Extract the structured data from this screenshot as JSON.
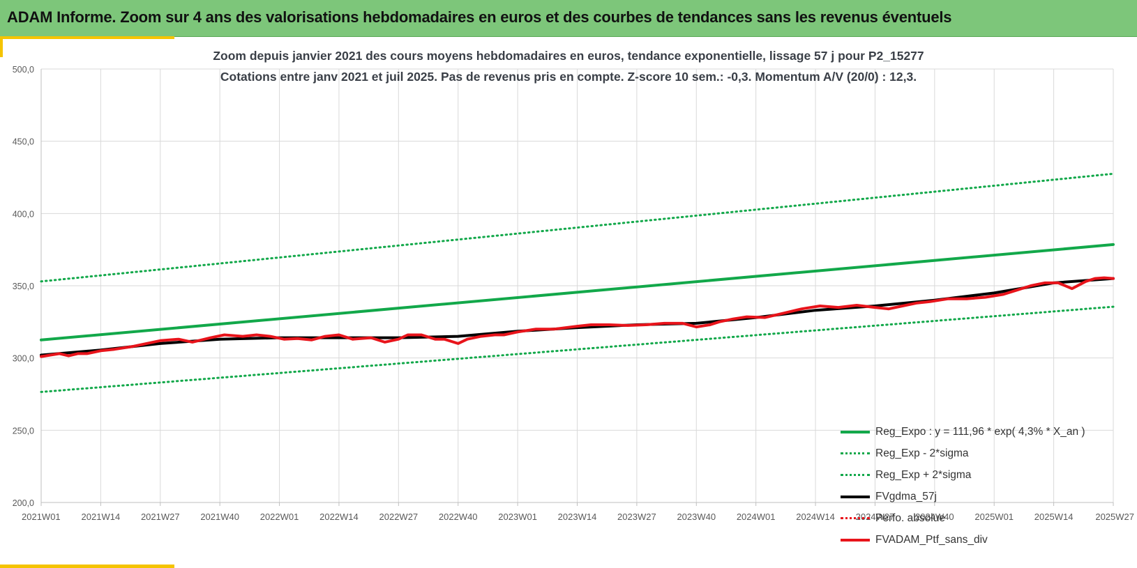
{
  "header": {
    "title": "ADAM Informe. Zoom sur 4 ans des valorisations hebdomadaires en euros et des courbes de tendances sans les revenus éventuels"
  },
  "colors": {
    "banner": "#7dc67a",
    "accent": "#f5c400",
    "trend": "#12a84a",
    "smooth": "#000000",
    "portfolio": "#e8141b"
  },
  "chart_data": {
    "type": "line",
    "title": "Zoom depuis janvier 2021 des cours moyens hebdomadaires  en euros, tendance exponentielle, lissage 57 j pour P2_15277",
    "subtitle": "Cotations entre janv 2021 et juil 2025. Pas de revenus pris en compte. Z-score 10 sem.: -0,3. Momentum A/V (20/0) : 12,3.",
    "x_ticks": [
      "2021W01",
      "2021W14",
      "2021W27",
      "2021W40",
      "2022W01",
      "2022W14",
      "2022W27",
      "2022W40",
      "2023W01",
      "2023W14",
      "2023W27",
      "2023W40",
      "2024W01",
      "2024W14",
      "2024W27",
      "2024W40",
      "2025W01",
      "2025W14",
      "2025W27"
    ],
    "y_ticks": [
      "200,0",
      "250,0",
      "300,0",
      "350,0",
      "400,0",
      "450,0",
      "500,0"
    ],
    "ylim": [
      200,
      500
    ],
    "grid": true,
    "legend_position": "bottom-right",
    "series": [
      {
        "name": "Reg_Expo : y = 111,96 * exp( 4,3% *  X_an )",
        "style": "solid",
        "width": 4,
        "color": "#12a84a",
        "x": [
          0,
          234
        ],
        "y": [
          312.5,
          378.5
        ]
      },
      {
        "name": "Reg_Exp - 2*sigma",
        "style": "dotted",
        "width": 3,
        "color": "#12a84a",
        "x": [
          0,
          234
        ],
        "y": [
          276.5,
          335.5
        ]
      },
      {
        "name": "Reg_Exp + 2*sigma",
        "style": "dotted",
        "width": 3,
        "color": "#12a84a",
        "x": [
          0,
          234
        ],
        "y": [
          353,
          427.5
        ]
      },
      {
        "name": "FVgdma_57j",
        "style": "solid",
        "width": 4,
        "color": "#000000",
        "x": [
          0,
          13,
          26,
          39,
          52,
          65,
          78,
          91,
          104,
          117,
          130,
          143,
          156,
          169,
          182,
          195,
          208,
          221,
          234
        ],
        "y": [
          302,
          305.5,
          310,
          313,
          314,
          314,
          314,
          315,
          318.5,
          321,
          323,
          324,
          328,
          333,
          336,
          340,
          345,
          352,
          355
        ]
      },
      {
        "name": "Perfo. absolue",
        "style": "dotted",
        "width": 3,
        "color": "#e8141b",
        "x": [],
        "y": []
      },
      {
        "name": "FVADAM_Ptf_sans_div",
        "style": "solid",
        "width": 4,
        "color": "#e8141b",
        "x": [
          0,
          4,
          6,
          8,
          10,
          13,
          16,
          20,
          23,
          26,
          30,
          33,
          37,
          40,
          44,
          47,
          50,
          53,
          56,
          59,
          62,
          65,
          68,
          72,
          75,
          78,
          80,
          83,
          86,
          88,
          91,
          93,
          96,
          99,
          101,
          104,
          108,
          112,
          117,
          120,
          124,
          128,
          132,
          136,
          140,
          143,
          146,
          148,
          151,
          154,
          158,
          162,
          166,
          170,
          174,
          178,
          182,
          185,
          188,
          191,
          194,
          198,
          202,
          206,
          210,
          213,
          216,
          219,
          222,
          225,
          228,
          230,
          232,
          234
        ],
        "y": [
          301,
          303,
          301.5,
          303,
          303,
          305,
          306,
          308,
          310,
          312,
          313,
          311,
          314,
          316,
          315,
          316,
          315,
          313,
          313.5,
          312.5,
          315,
          316,
          313,
          314,
          311,
          313,
          316,
          316,
          313,
          313,
          310,
          313,
          315,
          316,
          316,
          318,
          320,
          320,
          322,
          323,
          323,
          322.5,
          323,
          324,
          324,
          321.5,
          323,
          325,
          327,
          328.5,
          328,
          331,
          334,
          336,
          335,
          336.5,
          335,
          334,
          336,
          338,
          339,
          341,
          341,
          342,
          344,
          347,
          350,
          352,
          352,
          348,
          353,
          355,
          355.5,
          355
        ]
      }
    ]
  }
}
